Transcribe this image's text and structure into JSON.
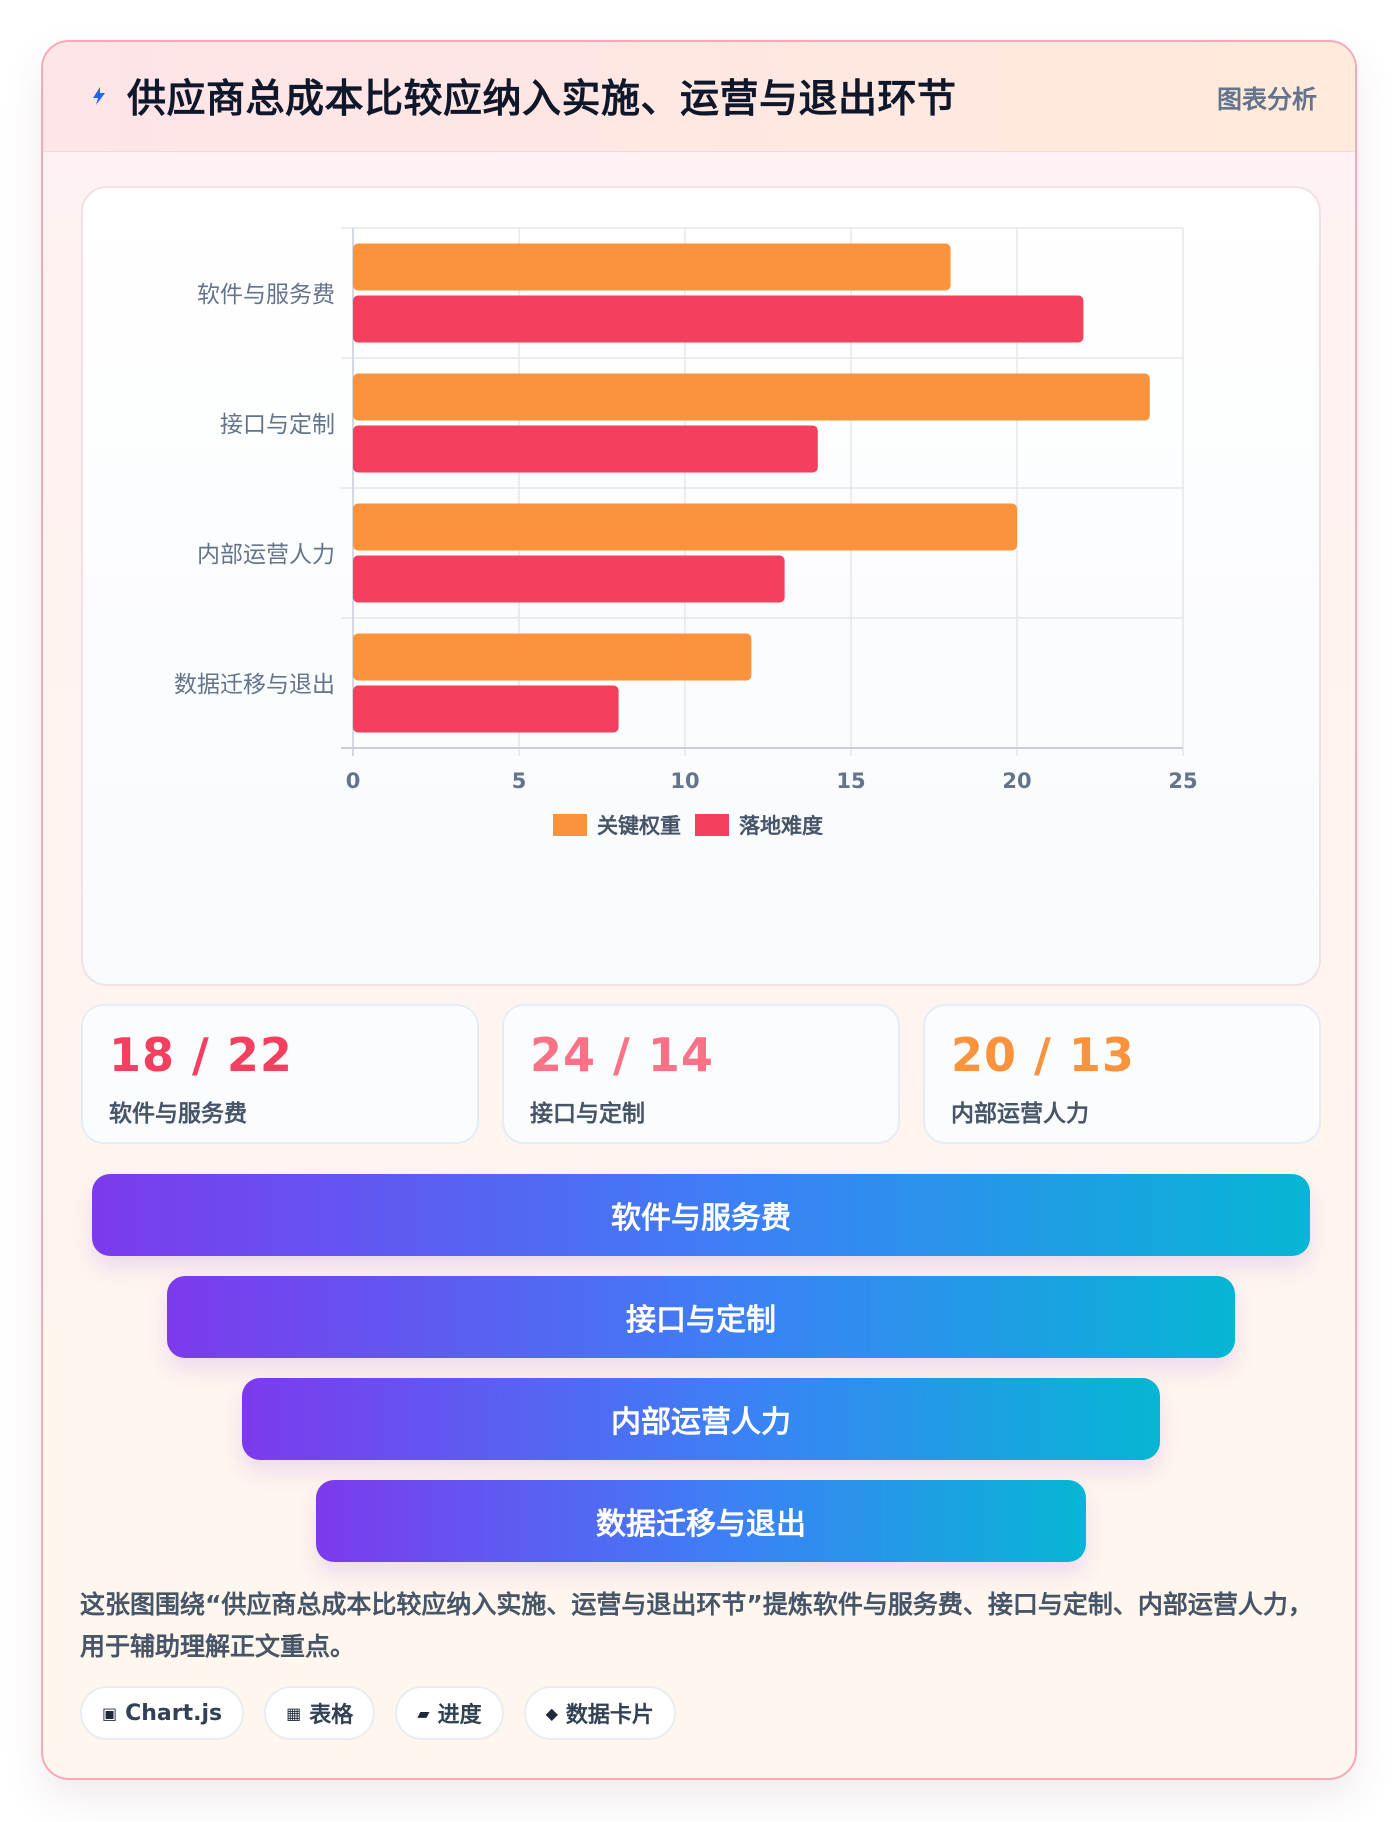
{
  "header": {
    "title": "供应商总成本比较应纳入实施、运营与退出环节",
    "tag": "图表分析"
  },
  "chart_data": {
    "type": "bar",
    "orientation": "horizontal",
    "categories": [
      "软件与服务费",
      "接口与定制",
      "内部运营人力",
      "数据迁移与退出"
    ],
    "series": [
      {
        "name": "关键权重",
        "color": "#fb923c",
        "values": [
          18,
          24,
          20,
          12
        ]
      },
      {
        "name": "落地难度",
        "color": "#f43f5e",
        "values": [
          22,
          14,
          13,
          8
        ]
      }
    ],
    "xlim": [
      0,
      25
    ],
    "xticks": [
      "0",
      "5",
      "10",
      "15",
      "20",
      "25"
    ],
    "grid": true,
    "legend_position": "bottom-center",
    "title": "",
    "xlabel": "",
    "ylabel": ""
  },
  "stats": [
    {
      "value": "18 / 22",
      "label": "软件与服务费",
      "color": "#f43f5e"
    },
    {
      "value": "24 / 14",
      "label": "接口与定制",
      "color": "#fb7185"
    },
    {
      "value": "20 / 13",
      "label": "内部运营人力",
      "color": "#fb923c"
    }
  ],
  "funnel": [
    {
      "label": "软件与服务费"
    },
    {
      "label": "接口与定制"
    },
    {
      "label": "内部运营人力"
    },
    {
      "label": "数据迁移与退出"
    }
  ],
  "description": "这张图围绕“供应商总成本比较应纳入实施、运营与退出环节”提炼软件与服务费、接口与定制、内部运营人力，用于辅助理解正文重点。",
  "chips": [
    {
      "icon": "chart-icon",
      "glyph": "▣",
      "label": "Chart.js"
    },
    {
      "icon": "table-icon",
      "glyph": "▦",
      "label": "表格"
    },
    {
      "icon": "progress-icon",
      "glyph": "▰",
      "label": "进度"
    },
    {
      "icon": "data-card-icon",
      "glyph": "◆",
      "label": "数据卡片"
    }
  ]
}
